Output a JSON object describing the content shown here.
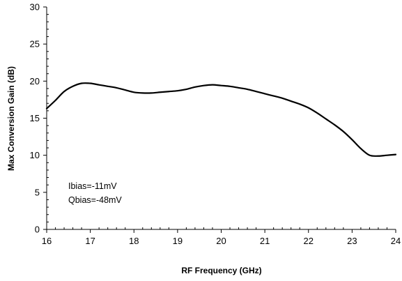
{
  "chart_data": {
    "type": "line",
    "title": "",
    "xlabel": "RF Frequency (GHz)",
    "ylabel": "Max Conversion Gain (dB)",
    "xlim": [
      16,
      24
    ],
    "ylim": [
      0,
      30
    ],
    "x_ticks": [
      16,
      17,
      18,
      19,
      20,
      21,
      22,
      23,
      24
    ],
    "y_ticks": [
      0,
      5,
      10,
      15,
      20,
      25,
      30
    ],
    "x_tick_labels": [
      "16",
      "17",
      "18",
      "19",
      "20",
      "21",
      "22",
      "23",
      "24"
    ],
    "y_tick_labels": [
      "0",
      "5",
      "10",
      "15",
      "20",
      "25",
      "30"
    ],
    "minor_ticks": true,
    "grid": false,
    "legend": null,
    "annotation_lines": [
      "Ibias=-11mV",
      "Qbias=-48mV"
    ],
    "line_color": "#000000",
    "series": [
      {
        "x": [
          16.0,
          16.2,
          16.4,
          16.6,
          16.8,
          17.0,
          17.2,
          17.4,
          17.6,
          17.8,
          18.0,
          18.2,
          18.4,
          18.6,
          18.8,
          19.0,
          19.2,
          19.4,
          19.6,
          19.8,
          20.0,
          20.2,
          20.4,
          20.6,
          20.8,
          21.0,
          21.2,
          21.4,
          21.6,
          21.8,
          22.0,
          22.2,
          22.4,
          22.6,
          22.8,
          23.0,
          23.2,
          23.4,
          23.6,
          23.8,
          24.0
        ],
        "y": [
          16.3,
          17.4,
          18.6,
          19.3,
          19.7,
          19.7,
          19.5,
          19.3,
          19.1,
          18.8,
          18.5,
          18.4,
          18.4,
          18.5,
          18.6,
          18.7,
          18.9,
          19.2,
          19.4,
          19.5,
          19.4,
          19.3,
          19.1,
          18.9,
          18.6,
          18.3,
          18.0,
          17.7,
          17.3,
          16.9,
          16.4,
          15.7,
          14.9,
          14.1,
          13.2,
          12.1,
          10.9,
          10.0,
          9.9,
          10.0,
          10.1
        ]
      }
    ]
  }
}
